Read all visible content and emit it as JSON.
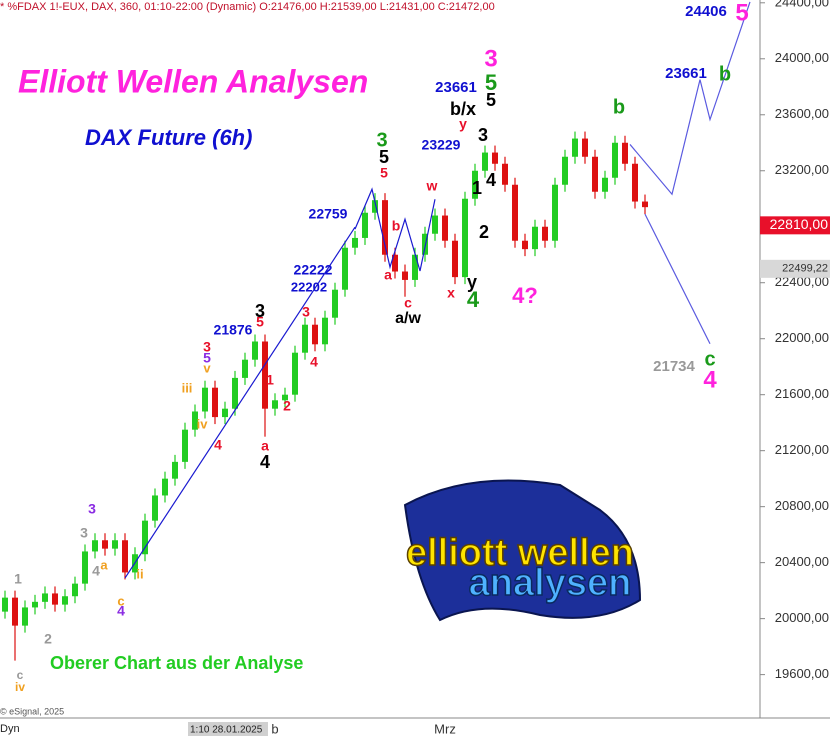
{
  "chart_data": {
    "type": "candlestick",
    "header": "* %FDAX 1!-EUX, DAX, 360, 01:10-22:00 (Dynamic) O:21476,00 H:21539,00 L:21431,00 C:21472,00",
    "title": "Elliott Wellen Analysen",
    "subtitle": "DAX Future (6h)",
    "footnote": "Oberer Chart aus der Analyse",
    "source": "© eSignal, 2025",
    "mode": "Dyn",
    "cursor_label": "1:10 28.01.2025",
    "logo": {
      "line1": "elliott wellen",
      "line2": "analysen"
    },
    "up_color": "#22cc22",
    "down_color": "#dd1111",
    "categories": [
      null,
      null,
      null,
      null,
      null,
      null,
      null,
      null,
      null,
      null,
      null,
      null,
      null,
      null,
      null,
      null,
      null,
      null,
      null,
      null,
      null,
      null,
      null,
      null,
      null,
      null,
      null,
      "b",
      null,
      null,
      null,
      null,
      null,
      null,
      null,
      null,
      null,
      null,
      null,
      null,
      null,
      null,
      null,
      null,
      "Mrz",
      null,
      null,
      null,
      null,
      null,
      null,
      null,
      null,
      null,
      null,
      null,
      null,
      null,
      null,
      null,
      null,
      null,
      null,
      null,
      null
    ],
    "open": [
      20050,
      20150,
      19950,
      20080,
      20120,
      20180,
      20100,
      20160,
      20250,
      20480,
      20560,
      20500,
      20560,
      20330,
      20460,
      20700,
      20880,
      21000,
      21120,
      21350,
      21480,
      21650,
      21440,
      21500,
      21720,
      21850,
      21980,
      21500,
      21560,
      21600,
      21900,
      22100,
      21960,
      22150,
      22350,
      22650,
      22720,
      22900,
      22990,
      22600,
      22480,
      22420,
      22600,
      22750,
      22880,
      22700,
      22440,
      23000,
      23200,
      23330,
      23250,
      23100,
      22700,
      22640,
      22800,
      22700,
      23100,
      23300,
      23430,
      23300,
      23050,
      23150,
      23400,
      23250,
      22980
    ],
    "high": [
      20200,
      20200,
      20130,
      20170,
      20230,
      20230,
      20210,
      20300,
      20530,
      20610,
      20610,
      20610,
      20610,
      20510,
      20750,
      20930,
      21050,
      21170,
      21400,
      21530,
      21700,
      21700,
      21550,
      21770,
      21900,
      22030,
      22030,
      21610,
      21650,
      21950,
      22150,
      22150,
      22200,
      22400,
      22700,
      22770,
      22950,
      23040,
      23040,
      22650,
      22530,
      22650,
      22800,
      22930,
      22930,
      22750,
      23050,
      23250,
      23380,
      23380,
      23300,
      23150,
      22750,
      22850,
      22850,
      23150,
      23350,
      23480,
      23480,
      23350,
      23200,
      23450,
      23450,
      23300,
      23030
    ],
    "low": [
      20000,
      19700,
      19900,
      20030,
      20070,
      20050,
      20050,
      20110,
      20200,
      20430,
      20450,
      20450,
      20280,
      20280,
      20410,
      20650,
      20830,
      20950,
      21070,
      21300,
      21430,
      21390,
      21390,
      21450,
      21670,
      21800,
      21300,
      21450,
      21510,
      21550,
      21850,
      21910,
      21910,
      22100,
      22300,
      22600,
      22670,
      22850,
      22550,
      22430,
      22300,
      22370,
      22550,
      22700,
      22650,
      22390,
      22390,
      22950,
      23150,
      23200,
      23050,
      22650,
      22590,
      22590,
      22650,
      22650,
      23050,
      23250,
      23250,
      23000,
      23000,
      23100,
      23200,
      22930,
      22890
    ],
    "close": [
      20150,
      19950,
      20080,
      20120,
      20180,
      20100,
      20160,
      20250,
      20480,
      20560,
      20500,
      20560,
      20330,
      20460,
      20700,
      20880,
      21000,
      21120,
      21350,
      21480,
      21650,
      21440,
      21500,
      21720,
      21850,
      21980,
      21500,
      21560,
      21600,
      21900,
      22100,
      21960,
      22150,
      22350,
      22650,
      22720,
      22900,
      22990,
      22600,
      22480,
      22420,
      22600,
      22750,
      22880,
      22700,
      22440,
      23000,
      23200,
      23330,
      23250,
      23100,
      22700,
      22640,
      22800,
      22700,
      23100,
      23300,
      23430,
      23300,
      23050,
      23150,
      23400,
      23250,
      22980,
      22940
    ],
    "ylim": [
      19290,
      24420
    ],
    "yticks": [
      {
        "value": 19600,
        "label": "19600,00"
      },
      {
        "value": 20000,
        "label": "20000,00"
      },
      {
        "value": 20400,
        "label": "20400,00"
      },
      {
        "value": 20800,
        "label": "20800,00"
      },
      {
        "value": 21200,
        "label": "21200,00"
      },
      {
        "value": 21600,
        "label": "21600,00"
      },
      {
        "value": 22000,
        "label": "22000,00"
      },
      {
        "value": 22400,
        "label": "22400,00"
      },
      {
        "value": 22800,
        "label": "22800,00"
      },
      {
        "value": 23200,
        "label": "23200,00"
      },
      {
        "value": 23600,
        "label": "23600,00"
      },
      {
        "value": 24000,
        "label": "24000,00"
      },
      {
        "value": 24400,
        "label": "24400,00"
      }
    ],
    "price_labels": [
      {
        "value": 22810,
        "label": "22810,00",
        "color": "#e8102a"
      },
      {
        "value": 22499.22,
        "label": "22499,22",
        "color": "#d8d8d8"
      }
    ],
    "lines": [
      {
        "color": "#1a1ad0",
        "x": [
          12,
          35
        ],
        "y": [
          20290,
          22797
        ]
      },
      {
        "color": "#1a1ad0",
        "x": [
          35,
          36.7,
          38.5,
          40,
          41.5,
          43
        ],
        "y": [
          22783,
          23068,
          22512,
          22854,
          22484,
          22996
        ]
      },
      {
        "color": "#5a5ae0",
        "x": [
          62.5,
          66.7,
          69.5,
          70.5,
          74.5
        ],
        "y": [
          23388,
          23032,
          23851,
          23566,
          24406
        ]
      },
      {
        "color": "#5a5ae0",
        "x": [
          64,
          70.5
        ],
        "y": [
          22890,
          21964
        ]
      }
    ],
    "annotations": [
      {
        "text": "1",
        "color": "#999999"
      },
      {
        "text": "c",
        "color": "#999999"
      },
      {
        "text": "iv",
        "color": "#f0a020"
      },
      {
        "text": "2",
        "color": "#999999"
      },
      {
        "text": "3",
        "color": "#999999"
      },
      {
        "text": "4",
        "color": "#999999"
      },
      {
        "text": "a",
        "color": "#f0a020"
      },
      {
        "text": "3",
        "color": "#8a2be2"
      },
      {
        "text": "c",
        "color": "#f0a020"
      },
      {
        "text": "4",
        "color": "#8a2be2"
      },
      {
        "text": "ii",
        "color": "#f0a020"
      },
      {
        "text": "iii",
        "color": "#f0a020"
      },
      {
        "text": "iv",
        "color": "#f0a020"
      },
      {
        "text": "3",
        "color": "#e8102a"
      },
      {
        "text": "5",
        "color": "#8a2be2"
      },
      {
        "text": "v",
        "color": "#f0a020"
      },
      {
        "text": "4",
        "color": "#e8102a"
      },
      {
        "text": "21876",
        "color": "#1010d0"
      },
      {
        "text": "3",
        "color": "#000000"
      },
      {
        "text": "5",
        "color": "#e8102a"
      },
      {
        "text": "1",
        "color": "#e8102a"
      },
      {
        "text": "2",
        "color": "#e8102a"
      },
      {
        "text": "a",
        "color": "#e8102a"
      },
      {
        "text": "4",
        "color": "#000000"
      },
      {
        "text": "3",
        "color": "#e8102a"
      },
      {
        "text": "4",
        "color": "#e8102a"
      },
      {
        "text": "22222",
        "color": "#1010d0"
      },
      {
        "text": "22202",
        "color": "#1010d0"
      },
      {
        "text": "22759",
        "color": "#1010d0"
      },
      {
        "text": "3",
        "color": "#1a9a1a"
      },
      {
        "text": "5",
        "color": "#000000"
      },
      {
        "text": "5",
        "color": "#e8102a"
      },
      {
        "text": "b",
        "color": "#e8102a"
      },
      {
        "text": "a",
        "color": "#e8102a"
      },
      {
        "text": "c",
        "color": "#e8102a"
      },
      {
        "text": "a/w",
        "color": "#000000"
      },
      {
        "text": "w",
        "color": "#e8102a"
      },
      {
        "text": "x",
        "color": "#e8102a"
      },
      {
        "text": "y",
        "color": "#000000"
      },
      {
        "text": "4",
        "color": "#1a9a1a"
      },
      {
        "text": "2",
        "color": "#000000"
      },
      {
        "text": "1",
        "color": "#000000"
      },
      {
        "text": "4",
        "color": "#000000"
      },
      {
        "text": "3",
        "color": "#000000"
      },
      {
        "text": "b/x",
        "color": "#000000"
      },
      {
        "text": "y",
        "color": "#e8102a"
      },
      {
        "text": "23229",
        "color": "#1010d0"
      },
      {
        "text": "23661",
        "color": "#1010d0"
      },
      {
        "text": "3",
        "color": "#ff22dd"
      },
      {
        "text": "5",
        "color": "#1a9a1a"
      },
      {
        "text": "5",
        "color": "#000000"
      },
      {
        "text": "4?",
        "color": "#ff22dd"
      },
      {
        "text": "b",
        "color": "#1a9a1a"
      },
      {
        "text": "23661",
        "color": "#1010d0"
      },
      {
        "text": "b",
        "color": "#1a9a1a"
      },
      {
        "text": "24406",
        "color": "#1010d0"
      },
      {
        "text": "5",
        "color": "#ff22dd"
      },
      {
        "text": "21734",
        "color": "#999999"
      },
      {
        "text": "c",
        "color": "#1a9a1a"
      },
      {
        "text": "4",
        "color": "#ff22dd"
      }
    ]
  }
}
